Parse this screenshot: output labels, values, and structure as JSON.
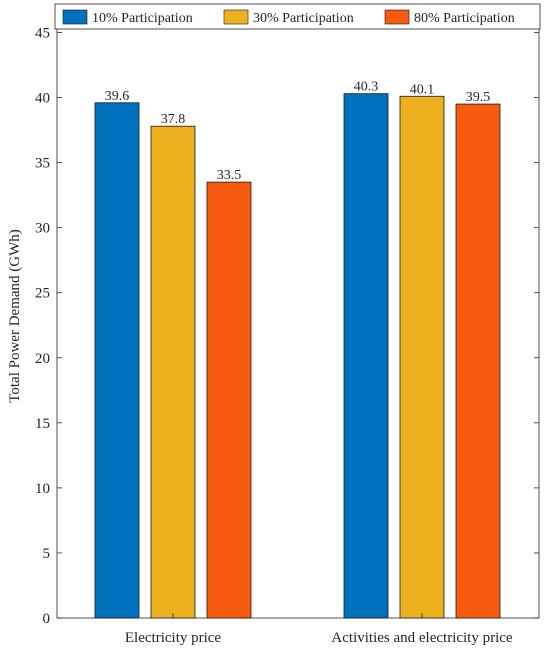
{
  "chart_data": {
    "type": "bar",
    "categories": [
      "Electricity price",
      "Activities and electricity price"
    ],
    "series": [
      {
        "name": "10% Participation",
        "color": "#0072BD",
        "values": [
          39.6,
          40.3
        ]
      },
      {
        "name": "30% Participation",
        "color": "#EDB120",
        "values": [
          37.8,
          40.1
        ]
      },
      {
        "name": "80% Participation",
        "color": "#F85A0F",
        "values": [
          33.5,
          39.5
        ]
      }
    ],
    "data_labels": [
      [
        "39.6",
        "40.3"
      ],
      [
        "37.8",
        "40.1"
      ],
      [
        "33.5",
        "39.5"
      ]
    ],
    "title": "",
    "xlabel": "",
    "ylabel": "Total Power Demand (GWh)",
    "ylim": [
      0,
      46.5
    ],
    "yticks": [
      0,
      5,
      10,
      15,
      20,
      25,
      30,
      35,
      40,
      45
    ],
    "grid": false,
    "legend_position": "top",
    "legend_orientation": "horizontal"
  }
}
